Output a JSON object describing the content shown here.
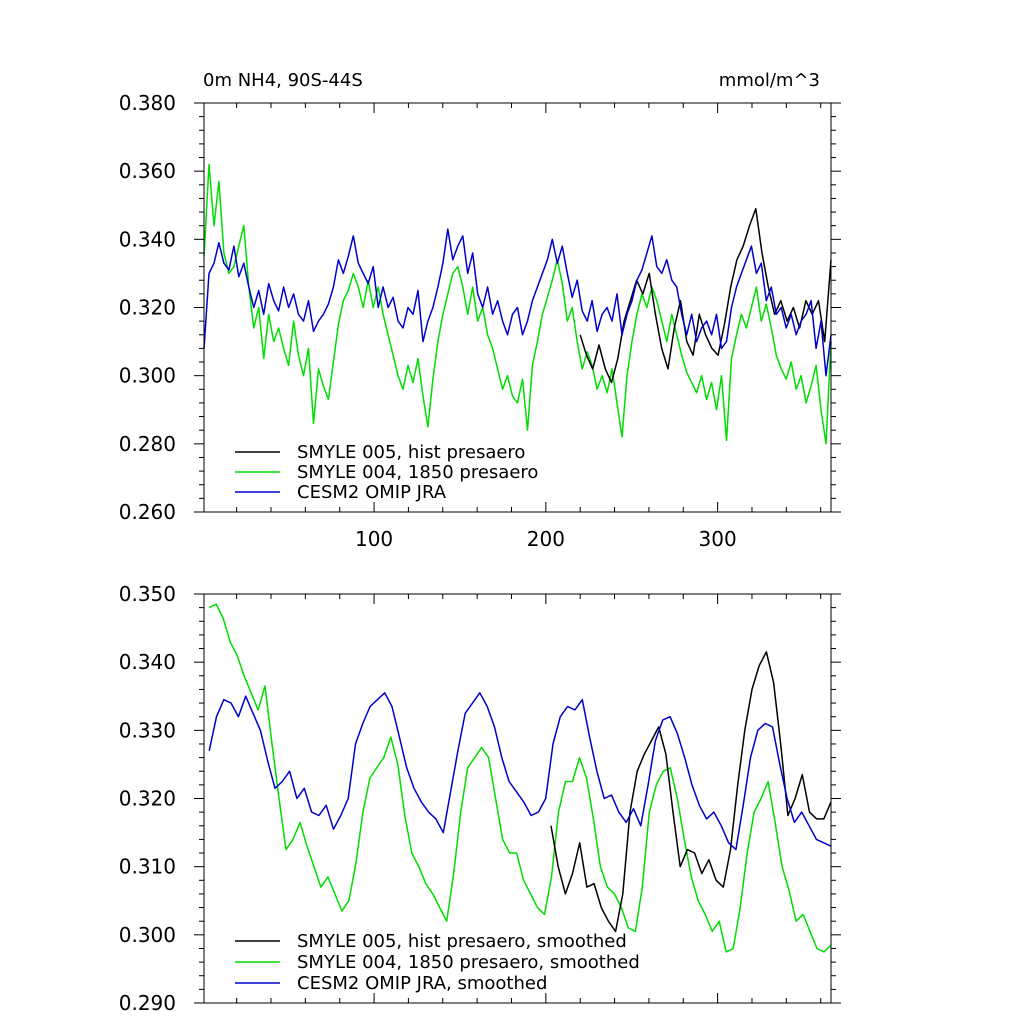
{
  "chart_data": [
    {
      "type": "line",
      "title_left": "0m NH4, 90S-44S",
      "title_right": "mmol/m^3",
      "xlim": [
        1,
        366
      ],
      "ylim": [
        0.26,
        0.38
      ],
      "xticks": [
        100,
        200,
        300
      ],
      "xtick_labels": [
        "100",
        "200",
        "300"
      ],
      "show_xtick_labels": true,
      "yticks": [
        0.26,
        0.28,
        0.3,
        0.32,
        0.34,
        0.36,
        0.38
      ],
      "ytick_labels": [
        "0.260",
        "0.280",
        "0.300",
        "0.320",
        "0.340",
        "0.360",
        "0.380"
      ],
      "legend_position": "bottom-left",
      "series": [
        {
          "name": "SMYLE 005, hist presaero",
          "color": "#000000",
          "start_day": 220,
          "values": [
            0.312,
            0.306,
            0.302,
            0.309,
            0.302,
            0.298,
            0.305,
            0.316,
            0.322,
            0.328,
            0.324,
            0.33,
            0.318,
            0.308,
            0.302,
            0.314,
            0.322,
            0.31,
            0.306,
            0.318,
            0.312,
            0.308,
            0.306,
            0.315,
            0.326,
            0.334,
            0.338,
            0.344,
            0.349,
            0.336,
            0.326,
            0.318,
            0.322,
            0.316,
            0.32,
            0.314,
            0.322,
            0.318,
            0.322,
            0.31,
            0.334
          ]
        },
        {
          "name": "SMYLE 004, 1850 presaero",
          "color": "#00dd00",
          "start_day": 1,
          "values": [
            0.335,
            0.362,
            0.344,
            0.357,
            0.336,
            0.33,
            0.332,
            0.338,
            0.344,
            0.326,
            0.314,
            0.32,
            0.305,
            0.318,
            0.31,
            0.314,
            0.308,
            0.303,
            0.316,
            0.306,
            0.3,
            0.308,
            0.286,
            0.302,
            0.297,
            0.293,
            0.304,
            0.315,
            0.322,
            0.325,
            0.33,
            0.326,
            0.32,
            0.328,
            0.32,
            0.326,
            0.318,
            0.312,
            0.306,
            0.3,
            0.296,
            0.303,
            0.298,
            0.305,
            0.294,
            0.285,
            0.299,
            0.31,
            0.318,
            0.324,
            0.33,
            0.332,
            0.326,
            0.318,
            0.326,
            0.316,
            0.32,
            0.312,
            0.308,
            0.302,
            0.296,
            0.3,
            0.294,
            0.292,
            0.299,
            0.284,
            0.303,
            0.31,
            0.318,
            0.323,
            0.328,
            0.334,
            0.327,
            0.316,
            0.32,
            0.31,
            0.302,
            0.307,
            0.303,
            0.296,
            0.3,
            0.295,
            0.302,
            0.292,
            0.282,
            0.3,
            0.31,
            0.318,
            0.324,
            0.32,
            0.326,
            0.322,
            0.316,
            0.31,
            0.318,
            0.312,
            0.306,
            0.301,
            0.298,
            0.295,
            0.3,
            0.293,
            0.298,
            0.29,
            0.3,
            0.281,
            0.305,
            0.312,
            0.318,
            0.314,
            0.32,
            0.326,
            0.316,
            0.321,
            0.314,
            0.306,
            0.302,
            0.299,
            0.304,
            0.296,
            0.3,
            0.292,
            0.297,
            0.303,
            0.29,
            0.28,
            0.31
          ]
        },
        {
          "name": "CESM2 OMIP JRA",
          "color": "#0000cc",
          "start_day": 1,
          "values": [
            0.308,
            0.33,
            0.333,
            0.339,
            0.333,
            0.331,
            0.338,
            0.329,
            0.333,
            0.326,
            0.32,
            0.325,
            0.318,
            0.327,
            0.322,
            0.319,
            0.326,
            0.32,
            0.324,
            0.318,
            0.316,
            0.322,
            0.313,
            0.316,
            0.318,
            0.321,
            0.326,
            0.334,
            0.33,
            0.335,
            0.341,
            0.333,
            0.33,
            0.327,
            0.332,
            0.32,
            0.326,
            0.32,
            0.323,
            0.316,
            0.314,
            0.32,
            0.318,
            0.325,
            0.31,
            0.316,
            0.32,
            0.326,
            0.333,
            0.343,
            0.334,
            0.338,
            0.341,
            0.33,
            0.336,
            0.324,
            0.32,
            0.326,
            0.318,
            0.322,
            0.316,
            0.312,
            0.318,
            0.32,
            0.312,
            0.316,
            0.322,
            0.326,
            0.33,
            0.334,
            0.34,
            0.333,
            0.338,
            0.33,
            0.323,
            0.328,
            0.319,
            0.316,
            0.322,
            0.313,
            0.318,
            0.32,
            0.316,
            0.324,
            0.312,
            0.318,
            0.322,
            0.328,
            0.331,
            0.336,
            0.341,
            0.332,
            0.33,
            0.334,
            0.328,
            0.326,
            0.318,
            0.312,
            0.318,
            0.31,
            0.314,
            0.316,
            0.312,
            0.318,
            0.308,
            0.31,
            0.32,
            0.326,
            0.33,
            0.334,
            0.338,
            0.33,
            0.333,
            0.322,
            0.326,
            0.318,
            0.32,
            0.314,
            0.318,
            0.312,
            0.316,
            0.318,
            0.322,
            0.308,
            0.316,
            0.3,
            0.312
          ]
        }
      ]
    },
    {
      "type": "line",
      "xlim": [
        1,
        366
      ],
      "ylim": [
        0.29,
        0.35
      ],
      "xticks": [
        100,
        200,
        300
      ],
      "xtick_labels": [],
      "show_xtick_labels": false,
      "yticks": [
        0.29,
        0.3,
        0.31,
        0.32,
        0.33,
        0.34,
        0.35
      ],
      "ytick_labels": [
        "0.290",
        "0.300",
        "0.310",
        "0.320",
        "0.330",
        "0.340",
        "0.350"
      ],
      "legend_position": "bottom-left",
      "series": [
        {
          "name": "SMYLE 005, hist presaero, smoothed",
          "color": "#000000",
          "start_day": 203,
          "values": [
            0.316,
            0.31,
            0.306,
            0.309,
            0.3135,
            0.307,
            0.3075,
            0.304,
            0.302,
            0.3005,
            0.306,
            0.318,
            0.324,
            0.3265,
            0.3285,
            0.3305,
            0.3265,
            0.318,
            0.31,
            0.3125,
            0.312,
            0.309,
            0.311,
            0.308,
            0.307,
            0.3125,
            0.322,
            0.33,
            0.336,
            0.3395,
            0.3415,
            0.337,
            0.328,
            0.3175,
            0.32,
            0.3235,
            0.318,
            0.317,
            0.317,
            0.3195
          ]
        },
        {
          "name": "SMYLE 004, 1850 presaero, smoothed",
          "color": "#00dd00",
          "start_day": 4,
          "values": [
            0.348,
            0.3485,
            0.3465,
            0.343,
            0.341,
            0.338,
            0.3355,
            0.333,
            0.3365,
            0.328,
            0.32,
            0.3125,
            0.314,
            0.3165,
            0.313,
            0.31,
            0.307,
            0.3085,
            0.306,
            0.3035,
            0.305,
            0.3105,
            0.318,
            0.323,
            0.3245,
            0.326,
            0.329,
            0.325,
            0.3175,
            0.312,
            0.31,
            0.3075,
            0.306,
            0.304,
            0.302,
            0.309,
            0.318,
            0.3245,
            0.326,
            0.3275,
            0.326,
            0.32,
            0.314,
            0.312,
            0.312,
            0.308,
            0.306,
            0.304,
            0.303,
            0.3085,
            0.318,
            0.3225,
            0.3225,
            0.326,
            0.323,
            0.317,
            0.31,
            0.307,
            0.306,
            0.304,
            0.301,
            0.3005,
            0.307,
            0.318,
            0.322,
            0.324,
            0.3245,
            0.32,
            0.314,
            0.3085,
            0.305,
            0.303,
            0.3005,
            0.302,
            0.2975,
            0.298,
            0.304,
            0.312,
            0.318,
            0.32,
            0.3225,
            0.3165,
            0.31,
            0.3065,
            0.302,
            0.303,
            0.3005,
            0.298,
            0.2975,
            0.2985
          ]
        },
        {
          "name": "CESM2 OMIP JRA, smoothed",
          "color": "#0000cc",
          "start_day": 4,
          "values": [
            0.327,
            0.332,
            0.3345,
            0.334,
            0.332,
            0.335,
            0.3325,
            0.33,
            0.3255,
            0.3215,
            0.3225,
            0.324,
            0.32,
            0.3215,
            0.318,
            0.3175,
            0.319,
            0.3155,
            0.3175,
            0.32,
            0.328,
            0.331,
            0.3335,
            0.3345,
            0.3355,
            0.3335,
            0.329,
            0.3245,
            0.3215,
            0.3195,
            0.318,
            0.317,
            0.315,
            0.321,
            0.327,
            0.3325,
            0.334,
            0.3355,
            0.3335,
            0.3305,
            0.326,
            0.3225,
            0.321,
            0.3195,
            0.3175,
            0.318,
            0.32,
            0.328,
            0.332,
            0.3335,
            0.333,
            0.3345,
            0.329,
            0.324,
            0.32,
            0.3205,
            0.318,
            0.3165,
            0.3185,
            0.316,
            0.322,
            0.3285,
            0.3315,
            0.332,
            0.3295,
            0.326,
            0.322,
            0.319,
            0.317,
            0.318,
            0.316,
            0.3135,
            0.3125,
            0.319,
            0.326,
            0.33,
            0.331,
            0.3305,
            0.325,
            0.32,
            0.3165,
            0.318,
            0.316,
            0.314,
            0.3135,
            0.313
          ]
        }
      ]
    }
  ]
}
